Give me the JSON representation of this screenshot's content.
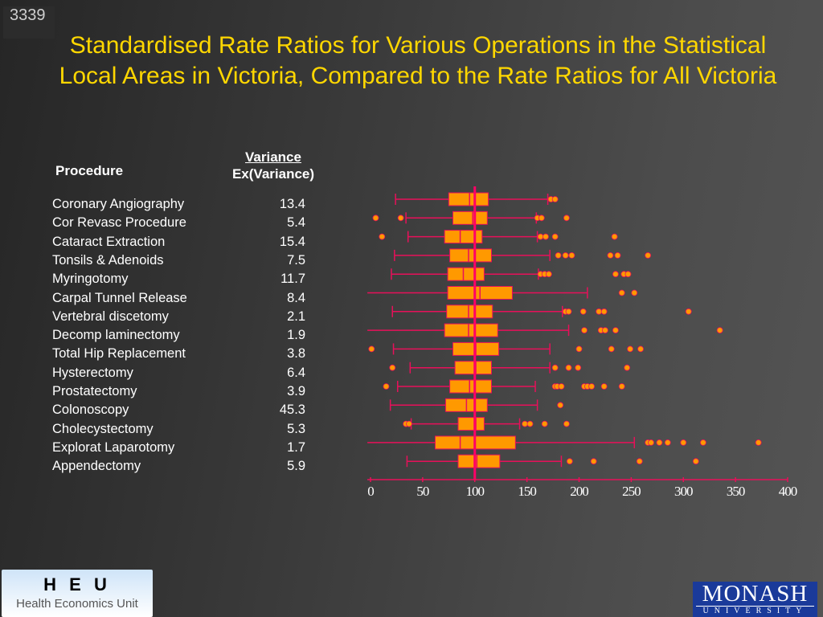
{
  "slide_number": "3339",
  "title": "Standardised Rate Ratios for Various Operations in the Statistical Local Areas in Victoria, Compared to the Rate Ratios for All Victoria",
  "table": {
    "procedure_header": "Procedure",
    "variance_header_1": "Variance",
    "variance_header_2": "Ex(Variance)"
  },
  "logos": {
    "heu_mark": "H E U",
    "heu_name": "Health Economics Unit",
    "monash_1": "MONASH",
    "monash_2": "UNIVERSITY"
  },
  "colors": {
    "box": "#ff9900",
    "line": "#e8105a",
    "title": "#ffd700",
    "outlier": "#ff9900"
  },
  "chart_data": {
    "type": "boxplot",
    "orientation": "horizontal",
    "xlim": [
      0,
      400
    ],
    "xticks": [
      "0",
      "50",
      "100",
      "150",
      "200",
      "250",
      "300",
      "350",
      "400"
    ],
    "reference_line": 100,
    "rows": [
      {
        "name": "Coronary Angiography",
        "variance": "13.4",
        "whisker": [
          24,
          170
        ],
        "box": [
          75,
          113
        ],
        "median": 95,
        "outliers": [
          173,
          177
        ]
      },
      {
        "name": "Cor Revasc Procedure",
        "variance": "5.4",
        "whisker": [
          34,
          159
        ],
        "box": [
          79,
          112
        ],
        "median": 98,
        "outliers": [
          5,
          29,
          160,
          164,
          188
        ]
      },
      {
        "name": "Cataract Extraction",
        "variance": "15.4",
        "whisker": [
          36,
          160
        ],
        "box": [
          71,
          107
        ],
        "median": 86,
        "outliers": [
          11,
          163,
          168,
          177,
          234
        ]
      },
      {
        "name": "Tonsils & Adenoids",
        "variance": "7.5",
        "whisker": [
          23,
          172
        ],
        "box": [
          76,
          116
        ],
        "median": 94,
        "outliers": [
          180,
          187,
          193,
          230,
          237,
          266
        ]
      },
      {
        "name": "Myringotomy",
        "variance": "11.7",
        "whisker": [
          20,
          161
        ],
        "box": [
          74,
          109
        ],
        "median": 89,
        "outliers": [
          163,
          167,
          171,
          235,
          243,
          247
        ]
      },
      {
        "name": "Carpal Tunnel Release",
        "variance": "8.4",
        "whisker": [
          -3,
          208
        ],
        "box": [
          74,
          136
        ],
        "median": 105,
        "outliers": [
          241,
          253
        ]
      },
      {
        "name": "Vertebral discetomy",
        "variance": "2.1",
        "whisker": [
          21,
          184
        ],
        "box": [
          73,
          117
        ],
        "median": 94,
        "outliers": [
          187,
          190,
          204,
          219,
          224,
          305
        ]
      },
      {
        "name": "Decomp laminectomy",
        "variance": "1.9",
        "whisker": [
          -3,
          190
        ],
        "box": [
          71,
          122
        ],
        "median": 94,
        "outliers": [
          205,
          221,
          225,
          235,
          335
        ]
      },
      {
        "name": "Total Hip Replacement",
        "variance": "3.8",
        "whisker": [
          22,
          172
        ],
        "box": [
          79,
          123
        ],
        "median": 101,
        "outliers": [
          1,
          200,
          231,
          249,
          259
        ]
      },
      {
        "name": "Hysterectomy",
        "variance": "6.4",
        "whisker": [
          38,
          172
        ],
        "box": [
          81,
          116
        ],
        "median": 101,
        "outliers": [
          21,
          177,
          190,
          199,
          246
        ]
      },
      {
        "name": "Prostatectomy",
        "variance": "3.9",
        "whisker": [
          26,
          158
        ],
        "box": [
          76,
          116
        ],
        "median": 95,
        "outliers": [
          15,
          177,
          179,
          183,
          205,
          208,
          212,
          224,
          241
        ]
      },
      {
        "name": "Colonoscopy",
        "variance": "45.3",
        "whisker": [
          19,
          160
        ],
        "box": [
          72,
          112
        ],
        "median": 92,
        "outliers": [
          182
        ]
      },
      {
        "name": "Cholecystectomy",
        "variance": "5.3",
        "whisker": [
          39,
          143
        ],
        "box": [
          84,
          109
        ],
        "median": 101,
        "outliers": [
          34,
          37,
          148,
          153,
          167,
          188
        ]
      },
      {
        "name": "Explorat Laparotomy",
        "variance": "1.7",
        "whisker": [
          -3,
          253
        ],
        "box": [
          62,
          139
        ],
        "median": 86,
        "outliers": [
          266,
          269,
          277,
          285,
          300,
          319,
          372
        ]
      },
      {
        "name": "Appendectomy",
        "variance": "5.9",
        "whisker": [
          35,
          183
        ],
        "box": [
          84,
          124
        ],
        "median": 102,
        "outliers": [
          191,
          214,
          258,
          312
        ]
      }
    ]
  }
}
